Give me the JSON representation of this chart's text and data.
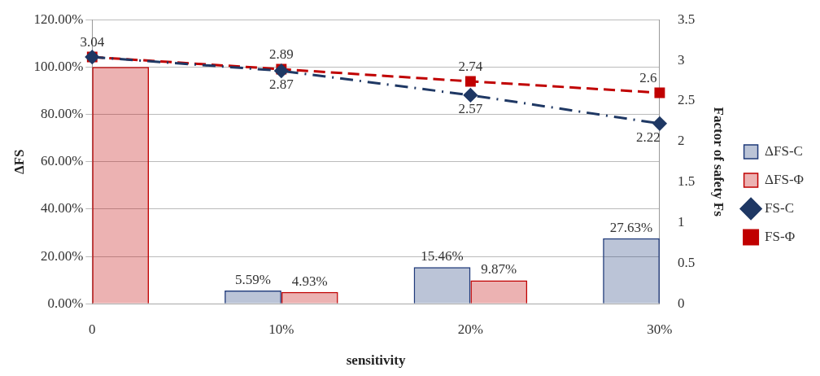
{
  "chart_data": {
    "type": "bar",
    "xlabel": "sensitivity",
    "ylabel": "ΔFS",
    "y2label": "Factor of safety Fs",
    "categories": [
      "0",
      "10%",
      "20%",
      "30%"
    ],
    "series": [
      {
        "name": "ΔFS-C",
        "color": "#1f3a7a",
        "values": [
          null,
          5.59,
          15.46,
          27.63
        ],
        "value_labels": [
          null,
          "5.59%",
          "15.46%",
          "27.63%"
        ]
      },
      {
        "name": "ΔFS-Φ",
        "color": "#c00000",
        "values": [
          100,
          4.93,
          9.87,
          null
        ],
        "value_labels": [
          null,
          "4.93%",
          "9.87%",
          null
        ]
      },
      {
        "name": "FS-C",
        "type": "line",
        "axis": "y2",
        "color": "#1f3864",
        "marker": "diamond",
        "line_style": "dashdot",
        "values": [
          3.04,
          2.87,
          2.57,
          2.22
        ],
        "value_labels": [
          null,
          "2.87",
          "2.57",
          "2.22"
        ]
      },
      {
        "name": "FS-Φ",
        "type": "line",
        "axis": "y2",
        "color": "#c00000",
        "marker": "square",
        "line_style": "dashed",
        "values": [
          3.04,
          2.89,
          2.74,
          2.6
        ],
        "value_labels": [
          "3.04",
          "2.89",
          "2.74",
          "2.6"
        ]
      }
    ],
    "ylim": [
      0,
      120
    ],
    "yticks": [
      {
        "value": 0,
        "label": "0.00%"
      },
      {
        "value": 20,
        "label": "20.00%"
      },
      {
        "value": 40,
        "label": "40.00%"
      },
      {
        "value": 60,
        "label": "60.00%"
      },
      {
        "value": 80,
        "label": "80.00%"
      },
      {
        "value": 100,
        "label": "100.00%"
      },
      {
        "value": 120,
        "label": "120.00%"
      }
    ],
    "y2lim": [
      0,
      3.5
    ],
    "y2ticks": [
      0,
      0.5,
      1,
      1.5,
      2,
      2.5,
      3,
      3.5
    ],
    "grid": "y",
    "legend": "right"
  }
}
